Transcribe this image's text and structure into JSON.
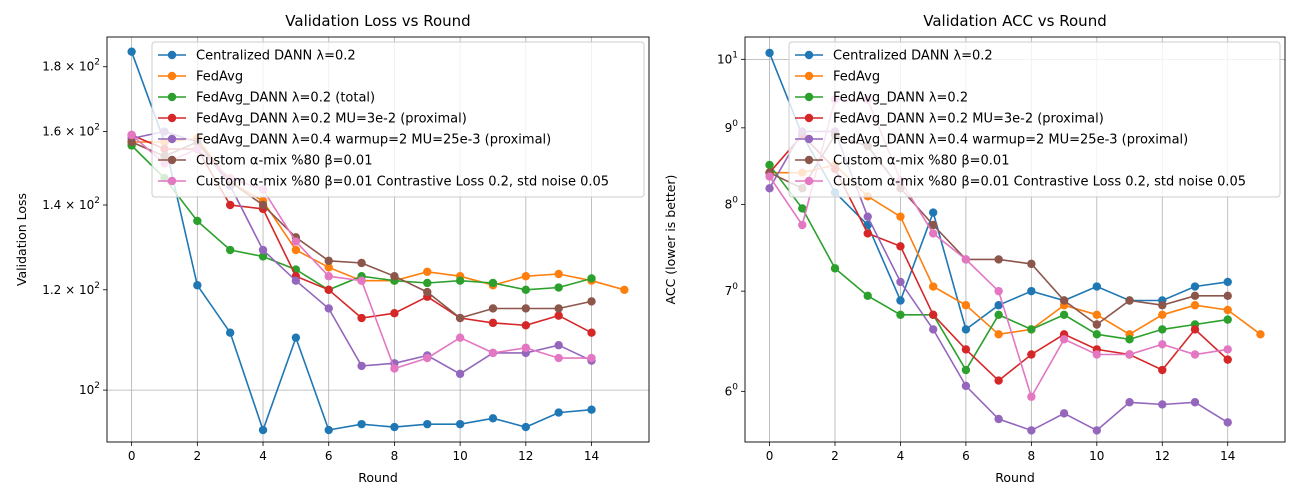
{
  "colors": [
    "#1f77b4",
    "#ff7f0e",
    "#2ca02c",
    "#d62728",
    "#9467bd",
    "#8c564b",
    "#e377c2"
  ],
  "chart_data": [
    {
      "type": "line",
      "title": "Validation Loss vs Round",
      "xlabel": "Round",
      "ylabel": "Validation Loss",
      "yscale": "log",
      "xlim": [
        -0.75,
        15.75
      ],
      "ylim": [
        91,
        190
      ],
      "xticks": [
        0,
        2,
        4,
        6,
        8,
        10,
        12,
        14
      ],
      "yticks": [
        {
          "value": 100,
          "base": "10",
          "exp": "2",
          "mant": ""
        },
        {
          "value": 120,
          "base": "10",
          "exp": "2",
          "mant": "1.2 × "
        },
        {
          "value": 140,
          "base": "10",
          "exp": "2",
          "mant": "1.4 × "
        },
        {
          "value": 160,
          "base": "10",
          "exp": "2",
          "mant": "1.6 × "
        },
        {
          "value": 180,
          "base": "10",
          "exp": "2",
          "mant": "1.8 × "
        }
      ],
      "grid": "y=100 only, x at each round tick",
      "legend": "upper right",
      "series": [
        {
          "name": "Centralized DANN λ=0.2",
          "x": [
            0,
            1,
            2,
            3,
            4,
            5,
            6,
            7,
            8,
            9,
            10,
            11,
            12,
            13,
            14
          ],
          "values": [
            185,
            157,
            121,
            111,
            93,
            110,
            93,
            94,
            93.5,
            94,
            94,
            95,
            93.5,
            96,
            96.5
          ]
        },
        {
          "name": "FedAvg",
          "x": [
            0,
            1,
            2,
            3,
            4,
            5,
            6,
            7,
            8,
            9,
            10,
            11,
            12,
            13,
            14,
            15
          ],
          "values": [
            157,
            157,
            158,
            146,
            141,
            129,
            125,
            122,
            122,
            124,
            123,
            121,
            123,
            123.5,
            122,
            120
          ]
        },
        {
          "name": "FedAvg_DANN λ=0.2 (total)",
          "x": [
            0,
            1,
            2,
            3,
            4,
            5,
            6,
            7,
            8,
            9,
            10,
            11,
            12,
            13,
            14
          ],
          "values": [
            156,
            147,
            136,
            129,
            127.5,
            124.5,
            120,
            123,
            122,
            121.5,
            122,
            121.5,
            120,
            120.5,
            122.5
          ]
        },
        {
          "name": "FedAvg_DANN λ=0.2 MU=3e-2 (proximal)",
          "x": [
            0,
            1,
            2,
            3,
            4,
            5,
            6,
            7,
            8,
            9,
            10,
            11,
            12,
            13,
            14
          ],
          "values": [
            159,
            155,
            155,
            140,
            139,
            123,
            120,
            114,
            115,
            118.5,
            114,
            113,
            112.5,
            114.5,
            111
          ]
        },
        {
          "name": "FedAvg_DANN λ=0.4 warmup=2 MU=25e-3 (proximal)",
          "x": [
            0,
            1,
            2,
            3,
            4,
            5,
            6,
            7,
            8,
            9,
            10,
            11,
            12,
            13,
            14
          ],
          "values": [
            158,
            160,
            157,
            145,
            129,
            122,
            116,
            104.5,
            105,
            106.5,
            103,
            107,
            107,
            108.5,
            105.5
          ]
        },
        {
          "name": "Custom α-mix %80 β=0.01",
          "x": [
            0,
            1,
            2,
            3,
            4,
            5,
            6,
            7,
            8,
            9,
            10,
            11,
            12,
            13,
            14
          ],
          "values": [
            157,
            153,
            157,
            146,
            140,
            132,
            126.5,
            126,
            123,
            119.5,
            114,
            116,
            116,
            116,
            117.5
          ]
        },
        {
          "name": "Custom α-mix %80 β=0.01 Contrastive Loss 0.2, std noise 0.05",
          "x": [
            0,
            1,
            2,
            3,
            4,
            5,
            6,
            7,
            8,
            9,
            10,
            11,
            12,
            13,
            14
          ],
          "values": [
            159,
            151,
            155,
            147,
            144,
            131,
            123,
            122,
            104,
            106,
            110,
            107,
            108,
            106,
            106
          ]
        }
      ]
    },
    {
      "type": "line",
      "title": "Validation ACC vs Round",
      "xlabel": "Round",
      "ylabel": "ACC (lower is better)",
      "yscale": "log",
      "xlim": [
        -0.75,
        15.75
      ],
      "ylim": [
        5.55,
        10.35
      ],
      "xticks": [
        0,
        2,
        4,
        6,
        8,
        10,
        12,
        14
      ],
      "yticks": [
        {
          "value": 6,
          "base": "6",
          "exp": "0",
          "mant": ""
        },
        {
          "value": 7,
          "base": "7",
          "exp": "0",
          "mant": ""
        },
        {
          "value": 8,
          "base": "8",
          "exp": "0",
          "mant": ""
        },
        {
          "value": 9,
          "base": "9",
          "exp": "0",
          "mant": ""
        },
        {
          "value": 10,
          "base": "10",
          "exp": "1",
          "mant": ""
        }
      ],
      "grid": "y=10 only, x at each round tick",
      "legend": "upper right",
      "series": [
        {
          "name": "Centralized DANN λ=0.2",
          "x": [
            0,
            1,
            2,
            3,
            4,
            5,
            6,
            7,
            8,
            9,
            10,
            11,
            12,
            13,
            14
          ],
          "values": [
            10.1,
            8.9,
            8.15,
            7.75,
            6.9,
            7.9,
            6.6,
            6.85,
            7.0,
            6.9,
            7.05,
            6.9,
            6.9,
            7.05,
            7.1
          ]
        },
        {
          "name": "FedAvg",
          "x": [
            0,
            1,
            2,
            3,
            4,
            5,
            6,
            7,
            8,
            9,
            10,
            11,
            12,
            13,
            14,
            15
          ],
          "values": [
            8.4,
            8.4,
            8.5,
            8.1,
            7.85,
            7.05,
            6.85,
            6.55,
            6.6,
            6.85,
            6.75,
            6.55,
            6.75,
            6.85,
            6.8,
            6.55
          ]
        },
        {
          "name": "FedAvg_DANN λ=0.2",
          "x": [
            0,
            1,
            2,
            3,
            4,
            5,
            6,
            7,
            8,
            9,
            10,
            11,
            12,
            13,
            14
          ],
          "values": [
            8.5,
            7.95,
            7.25,
            6.95,
            6.75,
            6.75,
            6.2,
            6.75,
            6.6,
            6.75,
            6.55,
            6.5,
            6.6,
            6.65,
            6.7
          ]
        },
        {
          "name": "FedAvg_DANN λ=0.2 MU=3e-2 (proximal)",
          "x": [
            0,
            1,
            2,
            3,
            4,
            5,
            6,
            7,
            8,
            9,
            10,
            11,
            12,
            13,
            14
          ],
          "values": [
            8.4,
            8.9,
            8.45,
            7.65,
            7.5,
            6.75,
            6.4,
            6.1,
            6.35,
            6.55,
            6.4,
            6.35,
            6.2,
            6.6,
            6.3
          ]
        },
        {
          "name": "FedAvg_DANN λ=0.4 warmup=2 MU=25e-3 (proximal)",
          "x": [
            0,
            1,
            2,
            3,
            4,
            5,
            6,
            7,
            8,
            9,
            10,
            11,
            12,
            13,
            14
          ],
          "values": [
            8.2,
            8.95,
            8.95,
            7.85,
            7.1,
            6.6,
            6.05,
            5.75,
            5.65,
            5.8,
            5.65,
            5.9,
            5.88,
            5.9,
            5.72
          ]
        },
        {
          "name": "Custom α-mix %80 β=0.01",
          "x": [
            0,
            1,
            2,
            3,
            4,
            5,
            6,
            7,
            8,
            9,
            10,
            11,
            12,
            13,
            14
          ],
          "values": [
            8.4,
            8.2,
            8.9,
            8.75,
            8.2,
            7.75,
            7.35,
            7.35,
            7.3,
            6.9,
            6.65,
            6.9,
            6.85,
            6.95,
            6.95
          ]
        },
        {
          "name": "Custom α-mix %80 β=0.01 Contrastive Loss 0.2, std noise 0.05",
          "x": [
            0,
            1,
            2,
            3,
            4,
            5,
            6,
            7,
            8,
            9,
            10,
            11,
            12,
            13,
            14
          ],
          "values": [
            8.35,
            7.75,
            9.4,
            9.4,
            8.3,
            7.65,
            7.35,
            7.0,
            5.95,
            6.5,
            6.35,
            6.35,
            6.45,
            6.35,
            6.4
          ]
        }
      ]
    }
  ]
}
